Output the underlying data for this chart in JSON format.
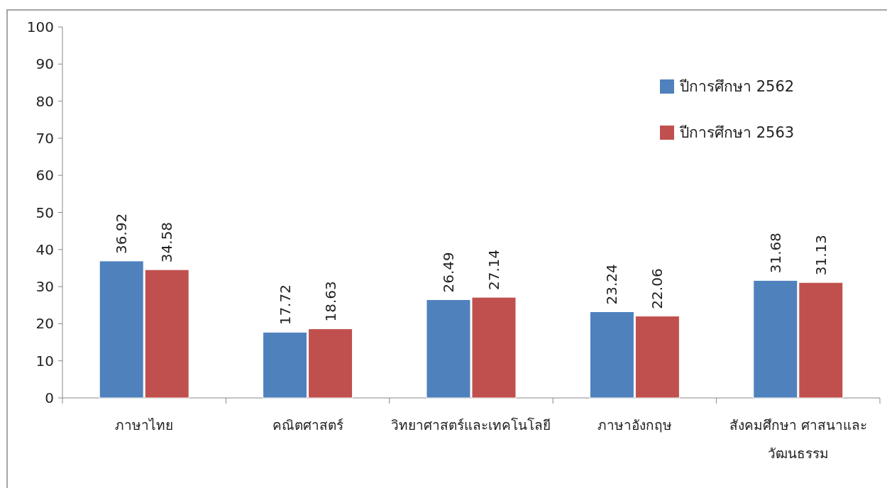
{
  "chart_data": {
    "type": "bar",
    "categories": [
      "ภาษาไทย",
      "คณิตศาสตร์",
      "วิทยาศาสตร์และเทคโนโลยี",
      "ภาษาอังกฤษ",
      "สังคมศึกษา ศาสนาและวัฒนธรรม"
    ],
    "series": [
      {
        "name": "ปีการศึกษา 2562",
        "color": "#4f81bd",
        "values": [
          36.92,
          17.72,
          26.49,
          23.24,
          31.68
        ]
      },
      {
        "name": "ปีการศึกษา 2563",
        "color": "#c0504d",
        "values": [
          34.58,
          18.63,
          27.14,
          22.06,
          31.13
        ]
      }
    ],
    "ylim": [
      0,
      100
    ],
    "yticks": [
      0,
      10,
      20,
      30,
      40,
      50,
      60,
      70,
      80,
      90,
      100
    ],
    "data_labels": true,
    "legend": "top right"
  }
}
